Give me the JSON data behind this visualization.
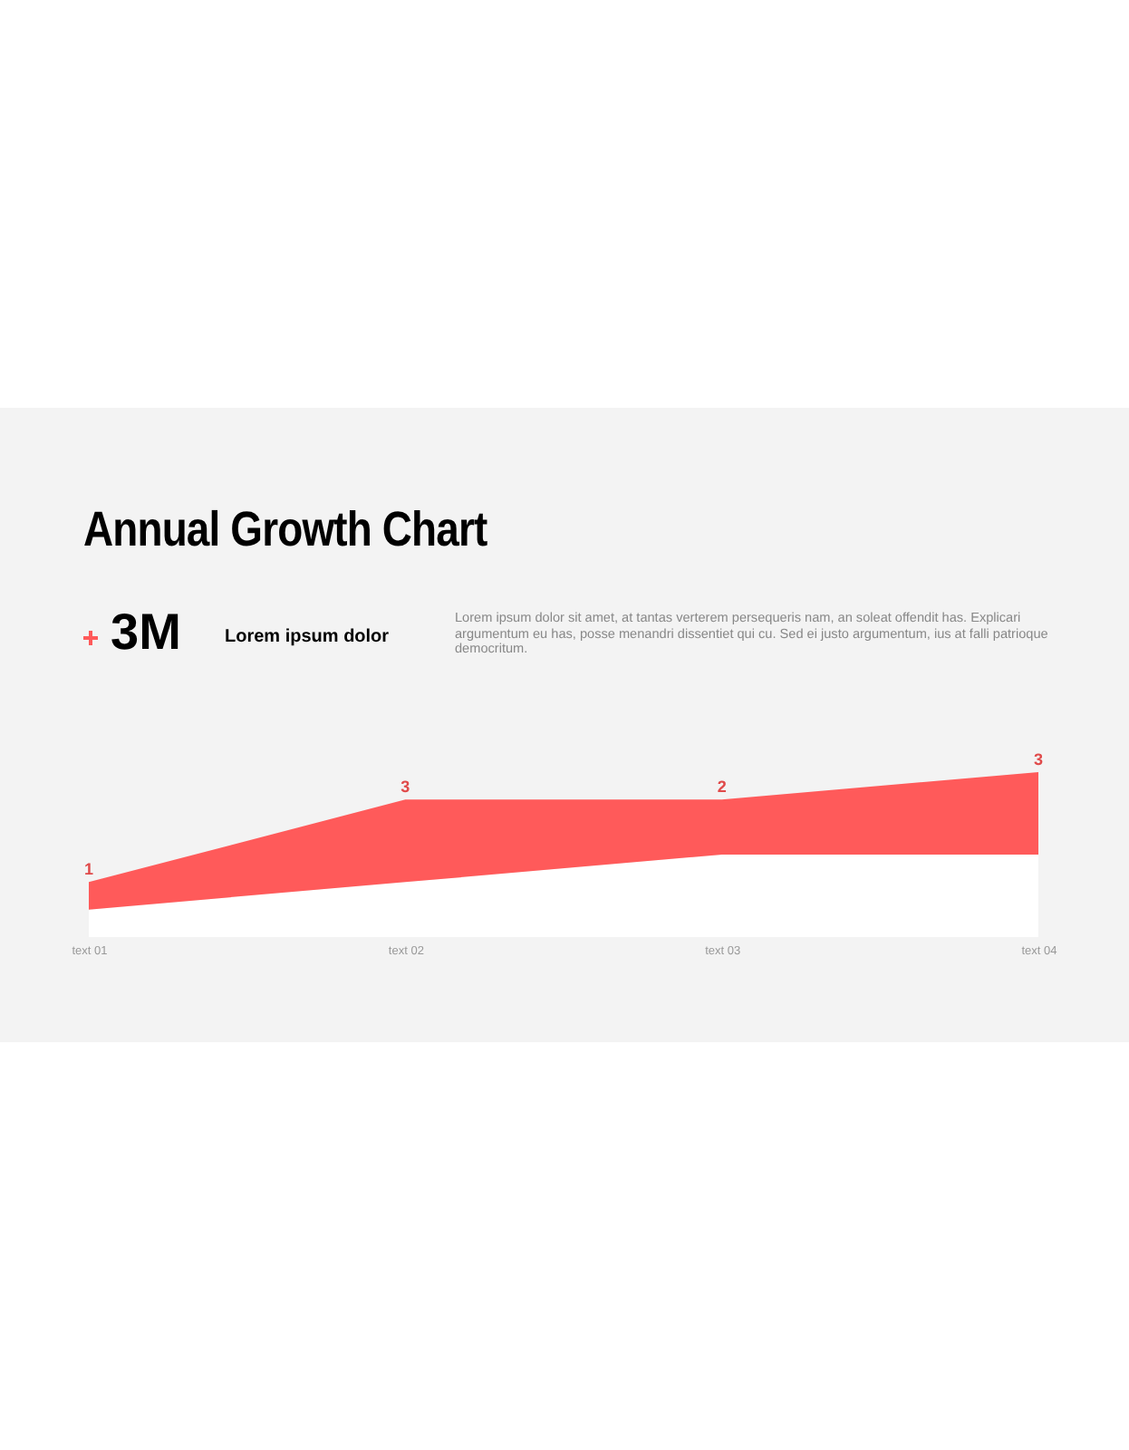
{
  "chart_data": {
    "type": "area",
    "stacked": true,
    "title": "Annual Growth Chart",
    "annotations": [
      "3M",
      "Lorem ipsum dolor",
      "Lorem ipsum dolor sit amet, at tantas verterem persequeris nam, an soleat offendit has. Explicari argumentum eu has, posse menandri dissentiet qui cu. Sed ei justo argumentum, ius at falli patrioque democritum."
    ],
    "categories": [
      "text 01",
      "text 02",
      "text 03",
      "text 04"
    ],
    "series": [
      {
        "color": "#ffffff",
        "values": [
          1,
          2,
          3,
          3
        ]
      },
      {
        "color": "#ff5a5a",
        "values": [
          1,
          3,
          2,
          3
        ],
        "value_labels": [
          "1",
          "3",
          "2",
          "3"
        ]
      }
    ]
  }
}
